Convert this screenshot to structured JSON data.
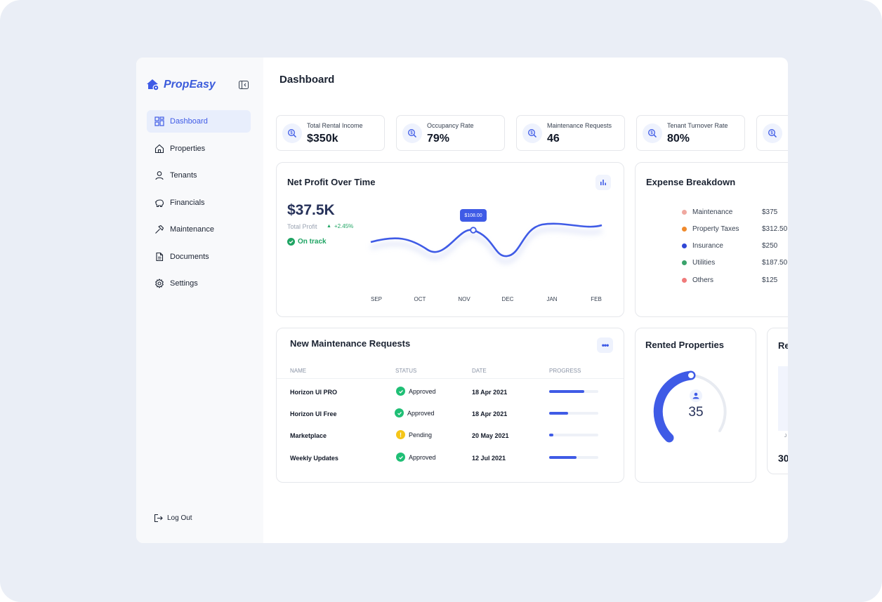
{
  "brand": {
    "name": "PropEasy"
  },
  "nav": {
    "items": [
      {
        "label": "Dashboard",
        "icon": "grid-icon",
        "active": true
      },
      {
        "label": "Properties",
        "icon": "home-icon"
      },
      {
        "label": "Tenants",
        "icon": "user-icon"
      },
      {
        "label": "Financials",
        "icon": "piggy-bank-icon"
      },
      {
        "label": "Maintenance",
        "icon": "hammer-icon"
      },
      {
        "label": "Documents",
        "icon": "document-icon"
      },
      {
        "label": "Settings",
        "icon": "gear-icon"
      }
    ],
    "logout": "Log Out"
  },
  "page": {
    "title": "Dashboard"
  },
  "stats": [
    {
      "label": "Total Rental Income",
      "value": "$350k"
    },
    {
      "label": "Occupancy Rate",
      "value": "79%"
    },
    {
      "label": "Maintenance Requests",
      "value": "46"
    },
    {
      "label": "Tenant Turnover Rate",
      "value": "80%"
    },
    {
      "label": "",
      "value": ""
    }
  ],
  "profit": {
    "title": "Net Profit Over Time",
    "amount": "$37.5K",
    "sublabel": "Total Profit",
    "change": "+2.45%",
    "status": "On track",
    "tooltip": "$108.00"
  },
  "chart_data": {
    "type": "line",
    "categories": [
      "SEP",
      "OCT",
      "NOV",
      "DEC",
      "JAN",
      "FEB"
    ],
    "highlight": {
      "category": "NOV",
      "label": "$108.00"
    },
    "grid": false,
    "accent": "#3f5be6"
  },
  "expenses": {
    "title": "Expense Breakdown",
    "items": [
      {
        "name": "Maintenance",
        "value": "$375",
        "color": "#f0a8a0"
      },
      {
        "name": "Property Taxes",
        "value": "$312.50",
        "color": "#f08a2c"
      },
      {
        "name": "Insurance",
        "value": "$250",
        "color": "#3047d6"
      },
      {
        "name": "Utilities",
        "value": "$187.50",
        "color": "#3aa36b"
      },
      {
        "name": "Others",
        "value": "$125",
        "color": "#f07a7a"
      }
    ]
  },
  "maintenance": {
    "title": "New Maintenance Requests",
    "columns": [
      "NAME",
      "STATUS",
      "DATE",
      "PROGRESS"
    ],
    "rows": [
      {
        "name": "Horizon UI PRO",
        "status": "Approved",
        "date": "18 Apr 2021",
        "progress": 0.72
      },
      {
        "name": "Horizon UI Free",
        "status": "Approved",
        "date": "18 Apr 2021",
        "progress": 0.38
      },
      {
        "name": "Marketplace",
        "status": "Pending",
        "date": "20 May 2021",
        "progress": 0.08
      },
      {
        "name": "Weekly Updates",
        "status": "Approved",
        "date": "12 Jul 2021",
        "progress": 0.55
      }
    ]
  },
  "rented": {
    "title": "Rented Properties",
    "value": "35"
  },
  "partial_card": {
    "title": "Re",
    "axis_label": "J",
    "value": "30"
  },
  "colors": {
    "accent": "#3f5be6",
    "approved": "#1fbf75",
    "pending": "#f5c518"
  }
}
